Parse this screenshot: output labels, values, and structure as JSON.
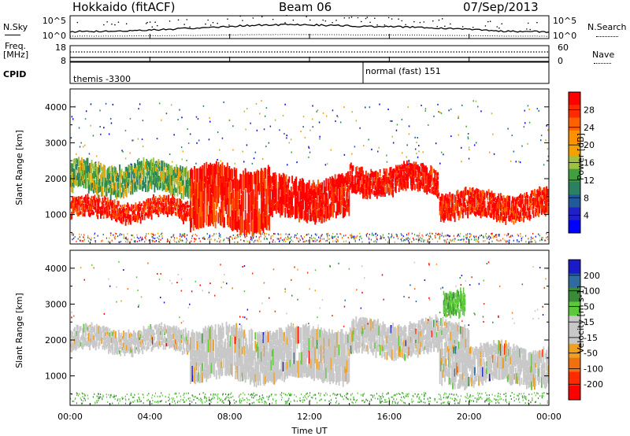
{
  "header": {
    "station": "Hokkaido (fitACF)",
    "beam": "Beam 06",
    "date": "07/Sep/2013"
  },
  "noise_panel": {
    "left_label": "N.Sky",
    "right_label": "N.Search",
    "y_ticks": [
      "10^5",
      "10^0"
    ]
  },
  "freq_panel": {
    "left_label_line1": "Freq.",
    "left_label_line2": "[MHz]",
    "left_ticks": [
      "18",
      "8"
    ],
    "right_ticks": [
      "60",
      "0"
    ],
    "right_label": "Nave"
  },
  "cpid_panel": {
    "label": "CPID",
    "modes": [
      "themis -3300",
      "normal (fast) 151"
    ]
  },
  "axes": {
    "y_label": "Slant Range [km]",
    "y_ticks": [
      "1000",
      "2000",
      "3000",
      "4000"
    ],
    "x_ticks": [
      "00:00",
      "04:00",
      "08:00",
      "12:00",
      "16:00",
      "20:00",
      "00:00"
    ],
    "x_label": "Time UT"
  },
  "power_colorbar": {
    "title": "Power [dB]",
    "ticks": [
      "28",
      "24",
      "20",
      "16",
      "12",
      "8",
      "4"
    ],
    "colors": [
      "#ff0000",
      "#ff2a00",
      "#ff6000",
      "#ff9000",
      "#f5a000",
      "#a0c040",
      "#40a040",
      "#2a8060",
      "#205a9a",
      "#2020c8",
      "#0000ff"
    ]
  },
  "velocity_colorbar": {
    "title": "Velocity [m s-1]",
    "ticks": [
      "200",
      "100",
      "50",
      "15",
      "-15",
      "-50",
      "-100",
      "-200"
    ],
    "colors": [
      "#1a1ac8",
      "#2f6aa0",
      "#3a8a3a",
      "#5cc83c",
      "#c8c8c8",
      "#c8c8c8",
      "#f0a020",
      "#f07010",
      "#ff2a00",
      "#ff0000"
    ]
  },
  "chart_data": [
    {
      "type": "heatmap",
      "title": "Power",
      "ylabel": "Slant Range [km]",
      "xlabel": "Time UT",
      "x_range": [
        "00:00",
        "24:00"
      ],
      "ylim": [
        180,
        4500
      ],
      "bands": [
        {
          "time": [
            0,
            6
          ],
          "range": [
            900,
            1400
          ],
          "value_db": 26
        },
        {
          "time": [
            0,
            6
          ],
          "range": [
            1600,
            2400
          ],
          "value_db": 12
        },
        {
          "time": [
            6,
            10
          ],
          "range": [
            600,
            2300
          ],
          "value_db": 26
        },
        {
          "time": [
            10,
            14
          ],
          "range": [
            900,
            2000
          ],
          "value_db": 28
        },
        {
          "time": [
            14,
            18.5
          ],
          "range": [
            1600,
            2300
          ],
          "value_db": 28
        },
        {
          "time": [
            18.5,
            24
          ],
          "range": [
            900,
            1600
          ],
          "value_db": 27
        }
      ]
    },
    {
      "type": "heatmap",
      "title": "Velocity",
      "ylabel": "Slant Range [km]",
      "xlabel": "Time UT",
      "x_range": [
        "00:00",
        "24:00"
      ],
      "ylim": [
        180,
        4500
      ],
      "bands": [
        {
          "time": [
            0,
            6
          ],
          "range": [
            1700,
            2300
          ],
          "value_ms": 0
        },
        {
          "time": [
            6,
            14
          ],
          "range": [
            900,
            2300
          ],
          "value_ms": 0
        },
        {
          "time": [
            14,
            20
          ],
          "range": [
            1600,
            2500
          ],
          "value_ms": 0
        },
        {
          "time": [
            18.5,
            24
          ],
          "range": [
            800,
            1800
          ],
          "value_ms": 0
        },
        {
          "time": [
            18.7,
            19.8
          ],
          "range": [
            2800,
            3400
          ],
          "value_ms": 60
        }
      ]
    }
  ]
}
